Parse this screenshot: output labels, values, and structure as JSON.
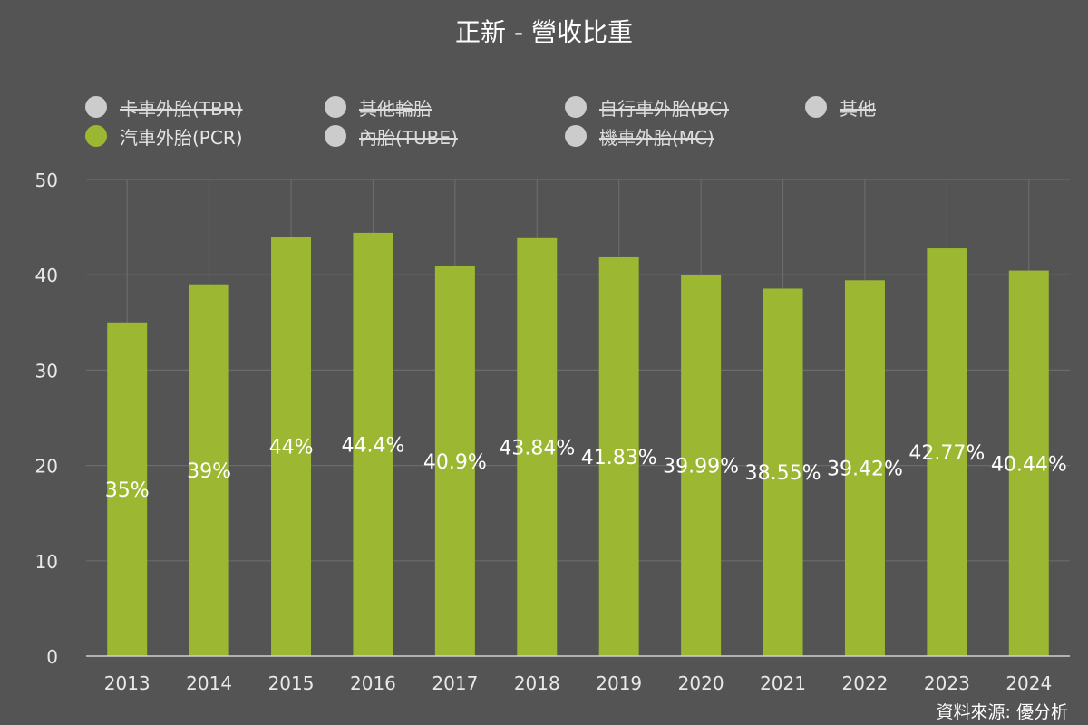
{
  "chart_data": {
    "type": "bar",
    "title": "正新 - 營收比重",
    "categories": [
      "2013",
      "2014",
      "2015",
      "2016",
      "2017",
      "2018",
      "2019",
      "2020",
      "2021",
      "2022",
      "2023",
      "2024"
    ],
    "series": [
      {
        "name": "汽車外胎(PCR)",
        "values": [
          35,
          39,
          44,
          44.4,
          40.9,
          43.84,
          41.83,
          39.99,
          38.55,
          39.42,
          42.77,
          40.44
        ],
        "data_labels": [
          "35%",
          "39%",
          "44%",
          "44.4%",
          "40.9%",
          "43.84%",
          "41.83%",
          "39.99%",
          "38.55%",
          "39.42%",
          "42.77%",
          "40.44%"
        ],
        "color": "#9cb832"
      }
    ],
    "legend": {
      "placement": "top",
      "items": [
        {
          "name": "卡車外胎(TBR)",
          "visible": false,
          "color": "#cccccc"
        },
        {
          "name": "其他輪胎",
          "visible": false,
          "color": "#cccccc"
        },
        {
          "name": "自行車外胎(BC)",
          "visible": false,
          "color": "#cccccc"
        },
        {
          "name": "其他",
          "visible": false,
          "color": "#cccccc"
        },
        {
          "name": "汽車外胎(PCR)",
          "visible": true,
          "color": "#9cb832"
        },
        {
          "name": "內胎(TUBE)",
          "visible": false,
          "color": "#cccccc"
        },
        {
          "name": "機車外胎(MC)",
          "visible": false,
          "color": "#cccccc"
        }
      ]
    },
    "ylim": [
      0,
      50
    ],
    "yticks": [
      "0",
      "10",
      "20",
      "30",
      "40",
      "50"
    ],
    "grid": true,
    "xlabel": "",
    "ylabel": ""
  },
  "source_note": "資料來源: 優分析",
  "colors": {
    "background": "#545454",
    "gridline": "#6b6b6b",
    "axis_line": "#d0d0d0",
    "bar": "#9cb832",
    "hidden_legend": "#cccccc"
  }
}
